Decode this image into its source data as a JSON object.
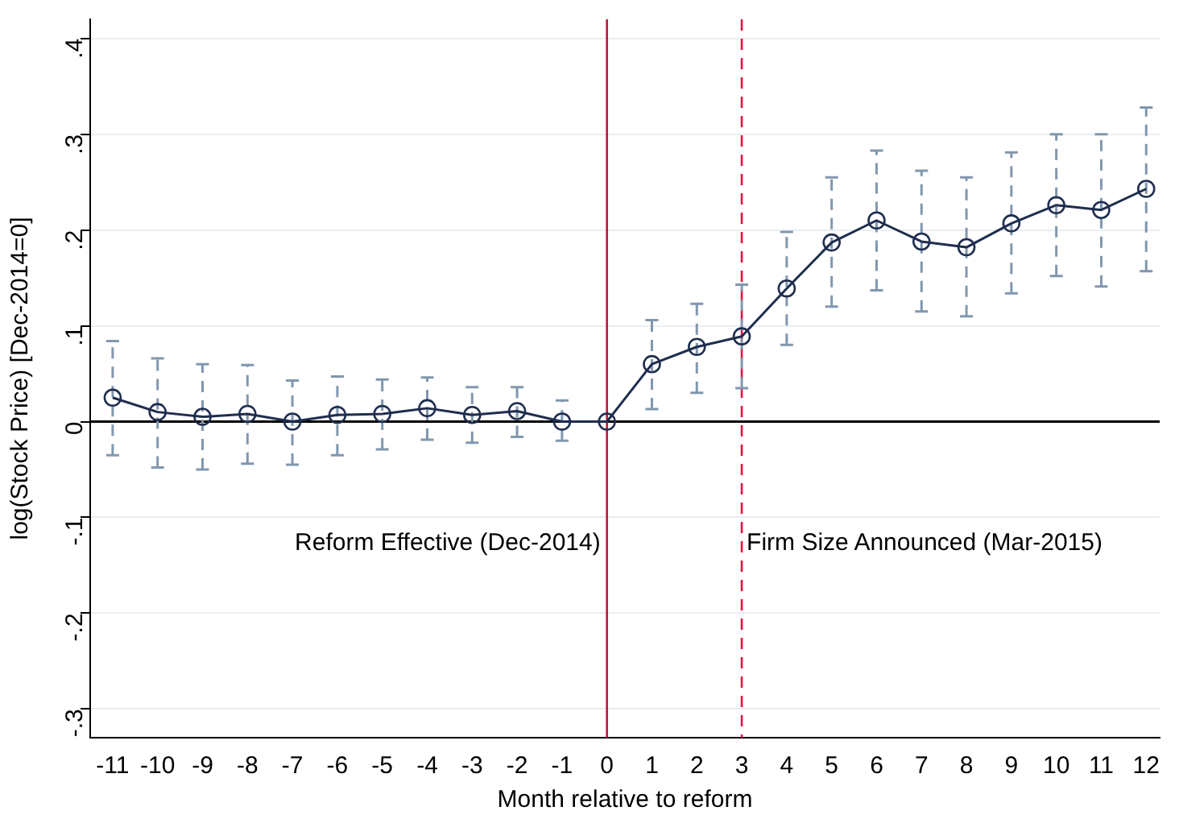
{
  "chart_data": {
    "type": "line",
    "xlabel": "Month relative to reform",
    "ylabel": "log(Stock Price) [Dec-2014=0]",
    "x": [
      -11,
      -10,
      -9,
      -8,
      -7,
      -6,
      -5,
      -4,
      -3,
      -2,
      -1,
      0,
      1,
      2,
      3,
      4,
      5,
      6,
      7,
      8,
      9,
      10,
      11,
      12
    ],
    "series": [
      {
        "color": "#1f2d4f",
        "values": [
          0.025,
          0.01,
          0.005,
          0.008,
          0,
          0.007,
          0.008,
          0.014,
          0.007,
          0.011,
          0,
          0,
          0.06,
          0.078,
          0.089,
          0.139,
          0.187,
          0.21,
          0.188,
          0.182,
          0.207,
          0.226,
          0.221,
          0.243
        ],
        "errors": [
          [
            -0.035,
            0.084
          ],
          [
            -0.048,
            0.066
          ],
          [
            -0.05,
            0.06
          ],
          [
            -0.044,
            0.059
          ],
          [
            -0.045,
            0.043
          ],
          [
            -0.035,
            0.047
          ],
          [
            -0.029,
            0.044
          ],
          [
            -0.019,
            0.046
          ],
          [
            -0.022,
            0.036
          ],
          [
            -0.016,
            0.036
          ],
          [
            -0.02,
            0.022
          ],
          null,
          [
            0.013,
            0.106
          ],
          [
            0.03,
            0.123
          ],
          [
            0.035,
            0.143
          ],
          [
            0.08,
            0.198
          ],
          [
            0.12,
            0.255
          ],
          [
            0.137,
            0.283
          ],
          [
            0.115,
            0.262
          ],
          [
            0.11,
            0.255
          ],
          [
            0.134,
            0.281
          ],
          [
            0.152,
            0.3
          ],
          [
            0.141,
            0.3
          ],
          [
            0.157,
            0.328
          ]
        ]
      }
    ],
    "xlim": [
      -11.5,
      12.3
    ],
    "xticks": [
      -11,
      -10,
      -9,
      -8,
      -7,
      -6,
      -5,
      -4,
      -3,
      -2,
      -1,
      0,
      1,
      2,
      3,
      4,
      5,
      6,
      7,
      8,
      9,
      10,
      11,
      12
    ],
    "ylim": [
      -0.33,
      0.42
    ],
    "yticks": [
      {
        "value": -0.3,
        "label": "-.3"
      },
      {
        "value": -0.2,
        "label": "-.2"
      },
      {
        "value": -0.1,
        "label": "-.1"
      },
      0,
      {
        "value": 0.1,
        "label": ".1"
      },
      {
        "value": 0.2,
        "label": ".2"
      },
      {
        "value": 0.3,
        "label": ".3"
      },
      {
        "value": 0.4,
        "label": ".4"
      }
    ],
    "ref_lines": [
      {
        "axis": "y",
        "value": 0,
        "color": "#000000"
      },
      {
        "axis": "x",
        "value": 0,
        "label": "Reform Effective (Dec-2014)",
        "color": "#c0143c",
        "line_style": "solid"
      },
      {
        "axis": "x",
        "value": 3,
        "label": "Firm Size Announced (Mar-2015)",
        "color": "#e0163f",
        "line_style": "dashed"
      }
    ],
    "grid": "y",
    "marker": "circle",
    "line_style": "solid",
    "legend": false
  }
}
